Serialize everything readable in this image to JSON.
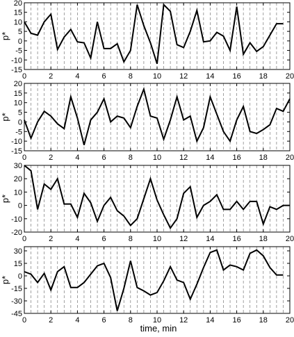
{
  "chart_data": [
    {
      "type": "line",
      "ylabel": "p*",
      "xlim": [
        0,
        20
      ],
      "ylim": [
        -15,
        20
      ],
      "yticks": [
        20,
        15,
        10,
        5,
        0,
        -5,
        -10,
        -15
      ],
      "xticks": [
        0,
        2,
        4,
        6,
        8,
        10,
        12,
        14,
        16,
        18,
        20
      ],
      "vertical_grid_step": 0.5,
      "x": [
        0,
        0.5,
        1,
        1.5,
        2,
        2.5,
        3,
        3.5,
        4,
        4.5,
        5,
        5.5,
        6,
        6.5,
        7,
        7.5,
        8,
        8.5,
        9,
        9.5,
        10,
        10.5,
        11,
        11.5,
        12,
        12.5,
        13,
        13.5,
        14,
        14.5,
        15,
        15.5,
        16,
        16.5,
        17,
        17.5,
        18,
        18.5,
        19,
        19.5
      ],
      "y": [
        10,
        4,
        3,
        10,
        14,
        -4.5,
        2,
        6,
        -0.5,
        -1,
        -9,
        10,
        -4,
        -4,
        -1.5,
        -11,
        -5,
        19,
        8,
        -1,
        -12,
        19,
        15.5,
        -2,
        -3.5,
        5,
        16,
        -0.5,
        0,
        4.5,
        2.5,
        -5,
        18,
        -7,
        -1,
        -5.5,
        -3,
        3,
        9,
        9
      ]
    },
    {
      "type": "line",
      "ylabel": "p*",
      "xlim": [
        0,
        20
      ],
      "ylim": [
        -15,
        20
      ],
      "yticks": [
        20,
        15,
        10,
        5,
        0,
        -5,
        -10,
        -15
      ],
      "xticks": [
        0,
        2,
        4,
        6,
        8,
        10,
        12,
        14,
        16,
        18,
        20
      ],
      "vertical_grid_step": 0.5,
      "x": [
        0,
        0.5,
        1,
        1.5,
        2,
        2.5,
        3,
        3.5,
        4,
        4.5,
        5,
        5.5,
        6,
        6.5,
        7,
        7.5,
        8,
        8.5,
        9,
        9.5,
        10,
        10.5,
        11,
        11.5,
        12,
        12.5,
        13,
        13.5,
        14,
        14.5,
        15,
        15.5,
        16,
        16.5,
        17,
        17.5,
        18,
        18.5,
        19,
        19.5,
        20
      ],
      "y": [
        1,
        -8.5,
        0,
        5.5,
        3,
        -1,
        -3.5,
        13,
        2,
        -12,
        1,
        5,
        12,
        0,
        3,
        2,
        -3,
        8,
        17,
        3,
        2,
        -9,
        1,
        13,
        1,
        3,
        -10,
        -3,
        13,
        4,
        -5,
        -10,
        1,
        8,
        -5,
        -6,
        -4,
        -1.5,
        7,
        5.5,
        12
      ]
    },
    {
      "type": "line",
      "ylabel": "p*",
      "xlim": [
        0,
        20
      ],
      "ylim": [
        -20,
        30
      ],
      "yticks": [
        30,
        20,
        10,
        0,
        -10,
        -20
      ],
      "xticks": [
        0,
        2,
        4,
        6,
        8,
        10,
        12,
        14,
        16,
        18,
        20
      ],
      "vertical_grid_step": 0.5,
      "x": [
        0,
        0.5,
        1,
        1.5,
        2,
        2.5,
        3,
        3.5,
        4,
        4.5,
        5,
        5.5,
        6,
        6.5,
        7,
        7.5,
        8,
        8.5,
        9,
        9.5,
        10,
        10.5,
        11,
        11.5,
        12,
        12.5,
        13,
        13.5,
        14,
        14.5,
        15,
        15.5,
        16,
        16.5,
        17,
        17.5,
        18,
        18.5,
        19,
        19.5,
        20
      ],
      "y": [
        30,
        26,
        -3,
        16,
        12,
        20,
        1,
        1,
        -9,
        9,
        2,
        -12,
        0,
        6,
        -4,
        -8,
        -15,
        -10,
        5,
        20,
        4,
        -7,
        -17,
        -10,
        9,
        14,
        -9,
        0,
        3,
        8,
        -3,
        -3,
        3,
        -3,
        3,
        3,
        -14,
        -1,
        -3,
        0,
        0
      ]
    },
    {
      "type": "line",
      "ylabel": "p*",
      "xlim": [
        0,
        20
      ],
      "ylim": [
        -45,
        35
      ],
      "yticks": [
        30,
        15,
        0,
        -15,
        -30,
        -45
      ],
      "xticks": [
        0,
        2,
        4,
        6,
        8,
        10,
        12,
        14,
        16,
        18,
        20
      ],
      "vertical_grid_step": 0.5,
      "xlabel": "time, min",
      "x": [
        0,
        0.5,
        1,
        1.5,
        2,
        2.5,
        3,
        3.5,
        4,
        4.5,
        5,
        5.5,
        6,
        6.5,
        7,
        7.5,
        8,
        8.5,
        9,
        9.5,
        10,
        10.5,
        11,
        11.5,
        12,
        12.5,
        13,
        13.5,
        14,
        14.5,
        15,
        15.5,
        16,
        16.5,
        17,
        17.5,
        18,
        18.5,
        19,
        19.5
      ],
      "y": [
        5,
        2,
        -8,
        3,
        -17,
        5,
        11,
        -14,
        -14,
        -8,
        2,
        12,
        15,
        -2,
        -42,
        -15,
        18,
        -14,
        -18,
        -23,
        -20,
        -6,
        11,
        -5,
        -8,
        -28,
        -10,
        10,
        28,
        31,
        7,
        13,
        11,
        7,
        27,
        31,
        24,
        10,
        1,
        1
      ]
    }
  ]
}
